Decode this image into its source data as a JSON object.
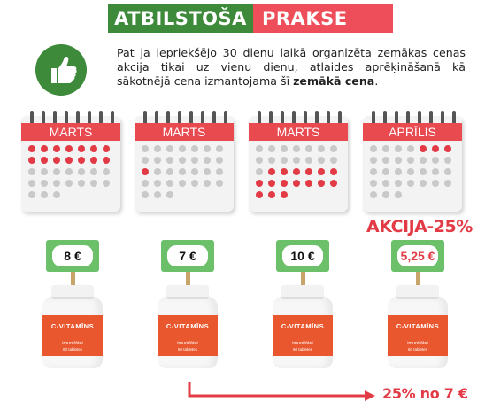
{
  "header": {
    "left_label": "ATBILSTOŠA",
    "right_label": "PRAKSE",
    "left_color": "#3d8a3a",
    "right_color": "#ee4d5a"
  },
  "intro": {
    "icon": "thumbs-up-icon",
    "text_before": "Pat ja iepriekšējo 30 dienu laikā organizēta zemākas cenas akcija tikai uz vienu dienu, atlaides aprēķināšanā kā sākotnējā cena izmantojama šī ",
    "text_bold": "zemākā cena",
    "text_after": "."
  },
  "calendars": [
    {
      "month": "MARTS",
      "highlight_from": 0,
      "highlight_to": 13
    },
    {
      "month": "MARTS",
      "highlight_from": 14,
      "highlight_to": 14
    },
    {
      "month": "MARTS",
      "highlight_from": 15,
      "highlight_to": 30
    },
    {
      "month": "APRĪLIS",
      "highlight_from": 4,
      "highlight_to": 6
    }
  ],
  "products": [
    {
      "price": "8 €",
      "name": "C-VITAMĪNS",
      "subtitle": "imunitātei",
      "count": "60 tabletes"
    },
    {
      "price": "7 €",
      "name": "C-VITAMĪNS",
      "subtitle": "imunitātei",
      "count": "60 tabletes"
    },
    {
      "price": "10 €",
      "name": "C-VITAMĪNS",
      "subtitle": "imunitātei",
      "count": "60 tabletes"
    },
    {
      "price": "5,25 €",
      "name": "C-VITAMĪNS",
      "subtitle": "imunitātei",
      "count": "60 tabletes"
    }
  ],
  "promo_label": "AKCIJA-25%",
  "footnote": "25% no 7 €",
  "accent_red": "#e23b45",
  "sign_green": "#6cc06a",
  "label_orange": "#e8572d"
}
